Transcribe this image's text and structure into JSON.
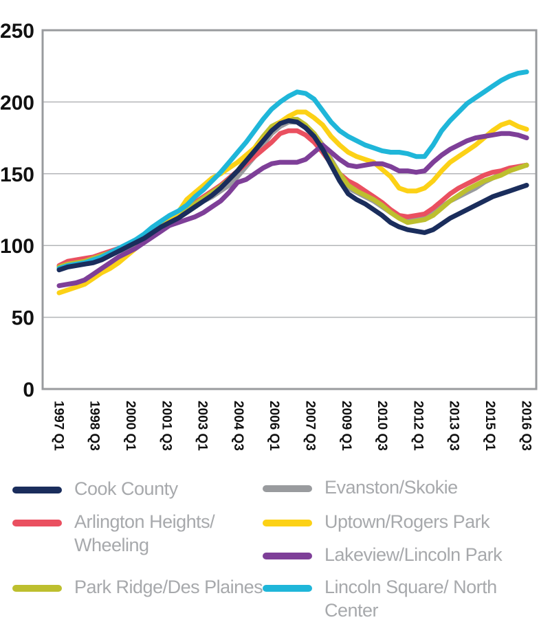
{
  "chart_data": {
    "type": "line",
    "title": "",
    "xlabel": "",
    "ylabel": "",
    "ylim": [
      0,
      250
    ],
    "yticks": [
      0,
      50,
      100,
      150,
      200,
      250
    ],
    "grid": true,
    "x_tick_labels": [
      "1997 Q1",
      "1998 Q3",
      "2000 Q1",
      "2001 Q3",
      "2003 Q1",
      "2004 Q3",
      "2006 Q1",
      "2007 Q3",
      "2009 Q1",
      "2010 Q3",
      "2012 Q1",
      "2013 Q3",
      "2015 Q1",
      "2016 Q3"
    ],
    "x_start": "1997 Q1",
    "x_end": "2016 Q3",
    "series": [
      {
        "name": "Evanston/Skokie",
        "color": "#999b9e",
        "values": [
          85,
          87,
          88,
          88,
          90,
          92,
          94,
          96,
          98,
          101,
          104,
          108,
          112,
          116,
          119,
          123,
          127,
          131,
          134,
          138,
          142,
          148,
          155,
          162,
          170,
          178,
          183,
          186,
          186,
          183,
          178,
          170,
          160,
          150,
          140,
          137,
          134,
          131,
          127,
          123,
          120,
          118,
          118,
          119,
          122,
          127,
          131,
          134,
          137,
          140,
          144,
          147,
          150,
          153,
          155,
          156
        ]
      },
      {
        "name": "Arlington Heights/ Wheeling",
        "color": "#ea5060",
        "values": [
          86,
          89,
          90,
          91,
          92,
          94,
          96,
          98,
          100,
          103,
          106,
          110,
          114,
          118,
          122,
          126,
          130,
          134,
          138,
          142,
          147,
          152,
          157,
          162,
          167,
          172,
          178,
          180,
          180,
          177,
          172,
          165,
          157,
          150,
          145,
          142,
          138,
          134,
          130,
          125,
          121,
          120,
          121,
          122,
          126,
          131,
          136,
          140,
          143,
          146,
          149,
          151,
          152,
          154,
          155,
          156
        ]
      },
      {
        "name": "Park Ridge/Des Plaines",
        "color": "#bdbf2e",
        "values": [
          85,
          87,
          88,
          89,
          91,
          93,
          95,
          97,
          99,
          102,
          105,
          109,
          113,
          117,
          121,
          125,
          129,
          133,
          137,
          141,
          146,
          152,
          160,
          168,
          176,
          183,
          186,
          188,
          188,
          184,
          178,
          169,
          159,
          150,
          142,
          138,
          135,
          132,
          128,
          123,
          119,
          116,
          117,
          118,
          121,
          126,
          131,
          135,
          139,
          142,
          145,
          147,
          149,
          152,
          154,
          156
        ]
      },
      {
        "name": "Uptown/Rogers Park",
        "color": "#fcd116",
        "values": [
          67,
          69,
          71,
          73,
          77,
          81,
          84,
          88,
          93,
          98,
          103,
          108,
          113,
          118,
          123,
          132,
          137,
          142,
          147,
          150,
          154,
          158,
          163,
          168,
          174,
          180,
          186,
          190,
          193,
          193,
          189,
          184,
          176,
          170,
          165,
          162,
          160,
          158,
          153,
          148,
          140,
          138,
          138,
          140,
          145,
          152,
          158,
          162,
          166,
          170,
          175,
          180,
          184,
          186,
          183,
          181
        ]
      },
      {
        "name": "Lakeview/Lincoln Park",
        "color": "#7e3f98",
        "values": [
          72,
          73,
          74,
          76,
          80,
          84,
          88,
          92,
          95,
          98,
          102,
          106,
          110,
          114,
          116,
          118,
          120,
          123,
          127,
          131,
          137,
          144,
          146,
          150,
          154,
          157,
          158,
          158,
          158,
          160,
          165,
          170,
          165,
          160,
          156,
          155,
          156,
          157,
          157,
          155,
          152,
          152,
          151,
          152,
          158,
          163,
          167,
          170,
          173,
          175,
          176,
          177,
          178,
          178,
          177,
          175
        ]
      },
      {
        "name": "Lincoln Square/ North Center",
        "color": "#1fb6d9",
        "values": [
          84,
          86,
          87,
          88,
          90,
          92,
          95,
          98,
          101,
          104,
          108,
          113,
          117,
          121,
          124,
          128,
          134,
          139,
          145,
          151,
          158,
          165,
          172,
          180,
          188,
          195,
          200,
          204,
          207,
          206,
          202,
          194,
          186,
          180,
          176,
          173,
          170,
          168,
          166,
          165,
          165,
          164,
          162,
          162,
          170,
          180,
          187,
          193,
          199,
          203,
          207,
          211,
          215,
          218,
          220,
          221
        ]
      },
      {
        "name": "Cook County",
        "color": "#1a2d5c",
        "values": [
          83,
          85,
          86,
          87,
          88,
          90,
          93,
          96,
          99,
          102,
          105,
          109,
          113,
          116,
          119,
          123,
          127,
          131,
          135,
          140,
          146,
          152,
          159,
          166,
          173,
          180,
          185,
          187,
          186,
          182,
          176,
          167,
          156,
          145,
          136,
          132,
          129,
          125,
          121,
          116,
          113,
          111,
          110,
          109,
          111,
          115,
          119,
          122,
          125,
          128,
          131,
          134,
          136,
          138,
          140,
          142
        ]
      }
    ]
  },
  "legend": {
    "items": [
      {
        "label": "Cook County",
        "color": "#1a2d5c"
      },
      {
        "label": "Evanston/Skokie",
        "color": "#999b9e"
      },
      {
        "label": "Arlington Heights/ Wheeling",
        "color": "#ea5060"
      },
      {
        "label": "Uptown/Rogers Park",
        "color": "#fcd116"
      },
      {
        "label": "Lakeview/Lincoln Park",
        "color": "#7e3f98"
      },
      {
        "label": "Park Ridge/Des Plaines",
        "color": "#bdbf2e"
      },
      {
        "label": "Lincoln Square/ North Center",
        "color": "#1fb6d9"
      }
    ]
  }
}
